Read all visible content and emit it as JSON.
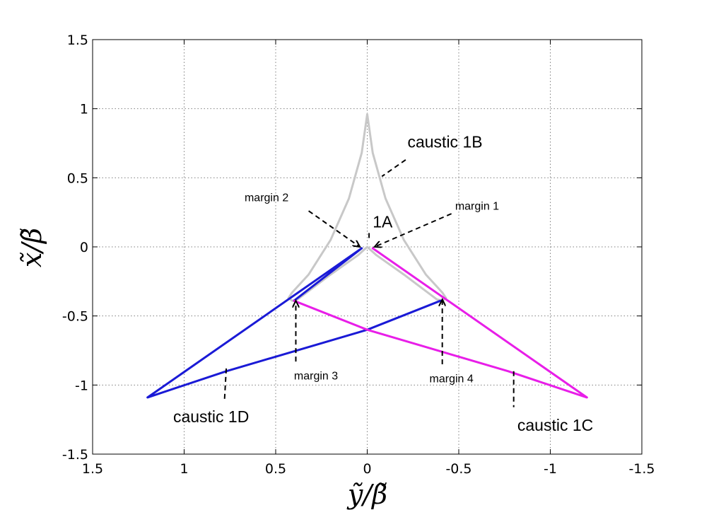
{
  "chart_data": {
    "type": "line",
    "xlabel": "ỹ/β̃",
    "ylabel": "x̃/β̃",
    "xlim": [
      1.5,
      -1.5
    ],
    "ylim": [
      -1.5,
      1.5
    ],
    "x_reversed": true,
    "grid": true,
    "xticks": [
      "1.5",
      "1",
      "0.5",
      "0",
      "-0.5",
      "-1",
      "-1.5"
    ],
    "yticks": [
      "1.5",
      "1",
      "0.5",
      "0",
      "-0.5",
      "-1",
      "-1.5"
    ],
    "series": [
      {
        "color": "#c8c8c8",
        "style": "closed",
        "points": [
          [
            0,
            0.96
          ],
          [
            -0.03,
            0.68
          ],
          [
            -0.1,
            0.35
          ],
          [
            -0.2,
            0.05
          ],
          [
            -0.32,
            -0.2
          ],
          [
            -0.41,
            -0.33
          ],
          [
            -0.43,
            -0.37
          ],
          [
            -0.41,
            -0.39
          ],
          [
            -0.38,
            -0.38
          ],
          [
            -0.2,
            -0.2
          ],
          [
            -0.05,
            -0.06
          ],
          [
            0,
            0
          ],
          [
            0.05,
            -0.06
          ],
          [
            0.2,
            -0.2
          ],
          [
            0.38,
            -0.38
          ],
          [
            0.41,
            -0.39
          ],
          [
            0.43,
            -0.37
          ],
          [
            0.41,
            -0.33
          ],
          [
            0.32,
            -0.2
          ],
          [
            0.2,
            0.05
          ],
          [
            0.1,
            0.35
          ],
          [
            0.03,
            0.68
          ],
          [
            0,
            0.96
          ]
        ]
      },
      {
        "color": "#1a1ad6",
        "style": "open",
        "points": [
          [
            0.4,
            -0.39
          ],
          [
            0.03,
            -0.01
          ],
          [
            1.2,
            -1.09
          ],
          [
            0.77,
            -0.9
          ],
          [
            0,
            -0.6
          ],
          [
            -0.4,
            -0.39
          ]
        ]
      },
      {
        "color": "#e81ee8",
        "style": "open",
        "points": [
          [
            -0.03,
            -0.01
          ],
          [
            -1.2,
            -1.09
          ],
          [
            -0.77,
            -0.9
          ],
          [
            0,
            -0.6
          ],
          [
            0.4,
            -0.39
          ]
        ]
      }
    ],
    "annotations": [
      {
        "text": "caustic 1B",
        "size": "big",
        "pos": [
          -0.22,
          0.72
        ],
        "arrow": false,
        "line": [
          [
            -0.21,
            0.63
          ],
          [
            -0.08,
            0.51
          ]
        ]
      },
      {
        "text": "margin 2",
        "size": "small",
        "pos": [
          0.67,
          0.33
        ],
        "arrow": true,
        "line": [
          [
            0.32,
            0.26
          ],
          [
            0.04,
            0.0
          ]
        ]
      },
      {
        "text": "margin 1",
        "size": "small",
        "pos": [
          -0.48,
          0.27
        ],
        "arrow": true,
        "line": [
          [
            -0.46,
            0.24
          ],
          [
            -0.04,
            0.0
          ]
        ]
      },
      {
        "text": "1A",
        "size": "big",
        "pos": [
          -0.03,
          0.14
        ],
        "arrow": false,
        "line": [
          [
            -0.01,
            0.1
          ],
          [
            -0.01,
            0.04
          ]
        ]
      },
      {
        "text": "margin 3",
        "size": "small",
        "pos": [
          0.4,
          -0.96
        ],
        "arrow": true,
        "line": [
          [
            0.39,
            -0.83
          ],
          [
            0.39,
            -0.39
          ]
        ]
      },
      {
        "text": "margin 4",
        "size": "small",
        "pos": [
          -0.34,
          -0.98
        ],
        "arrow": true,
        "line": [
          [
            -0.41,
            -0.85
          ],
          [
            -0.41,
            -0.38
          ]
        ]
      },
      {
        "text": "caustic 1D",
        "size": "big",
        "pos": [
          1.06,
          -1.27
        ],
        "arrow": false,
        "line": [
          [
            0.77,
            -0.88
          ],
          [
            0.78,
            -1.12
          ]
        ]
      },
      {
        "text": "caustic 1C",
        "size": "big",
        "pos": [
          -0.82,
          -1.33
        ],
        "arrow": false,
        "line": [
          [
            -0.8,
            -0.9
          ],
          [
            -0.8,
            -1.16
          ]
        ]
      }
    ]
  }
}
